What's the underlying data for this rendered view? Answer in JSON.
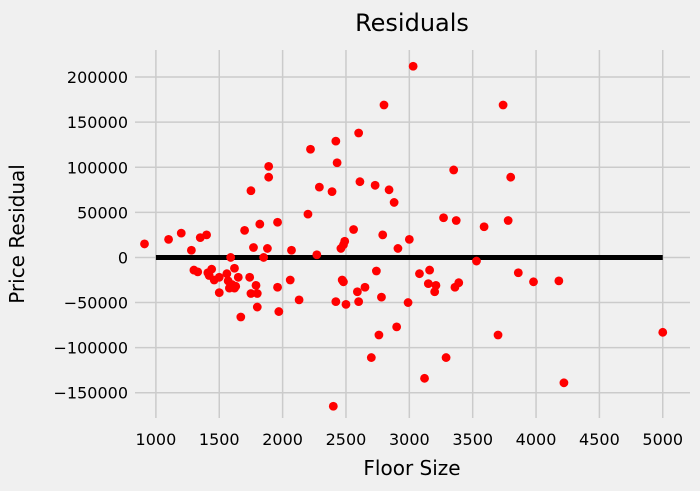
{
  "chart_data": {
    "type": "scatter",
    "title": "Residuals",
    "xlabel": "Floor Size",
    "ylabel": "Price Residual",
    "xlim": [
      835,
      5215
    ],
    "ylim": [
      -178000,
      230000
    ],
    "xticks": [
      1000,
      1500,
      2000,
      2500,
      3000,
      3500,
      4000,
      4500,
      5000
    ],
    "yticks": [
      -150000,
      -100000,
      -50000,
      0,
      50000,
      100000,
      150000,
      200000
    ],
    "xtick_labels": [
      "1000",
      "1500",
      "2000",
      "2500",
      "3000",
      "3500",
      "4000",
      "4500",
      "5000"
    ],
    "ytick_labels": [
      "−150000",
      "−100000",
      "−50000",
      "0",
      "50000",
      "100000",
      "150000",
      "200000"
    ],
    "grid": true,
    "marker_color": "#ff0000",
    "baseline": {
      "y": 0,
      "x": [
        1000,
        5000
      ],
      "color": "#000000"
    },
    "series": [
      {
        "points": [
          {
            "x": 910,
            "y": 15000
          },
          {
            "x": 1100,
            "y": 20000
          },
          {
            "x": 1200,
            "y": 27000
          },
          {
            "x": 1280,
            "y": 8000
          },
          {
            "x": 1300,
            "y": -14000
          },
          {
            "x": 1330,
            "y": -16000
          },
          {
            "x": 1350,
            "y": 22000
          },
          {
            "x": 1400,
            "y": 25000
          },
          {
            "x": 1410,
            "y": -17000
          },
          {
            "x": 1420,
            "y": -20000
          },
          {
            "x": 1440,
            "y": -13000
          },
          {
            "x": 1460,
            "y": -25000
          },
          {
            "x": 1500,
            "y": -22000
          },
          {
            "x": 1500,
            "y": -39000
          },
          {
            "x": 1560,
            "y": -18000
          },
          {
            "x": 1570,
            "y": -26000
          },
          {
            "x": 1580,
            "y": -34000
          },
          {
            "x": 1590,
            "y": 0
          },
          {
            "x": 1600,
            "y": -30000
          },
          {
            "x": 1620,
            "y": -34000
          },
          {
            "x": 1620,
            "y": -12000
          },
          {
            "x": 1630,
            "y": -32000
          },
          {
            "x": 1650,
            "y": -22000
          },
          {
            "x": 1670,
            "y": -66000
          },
          {
            "x": 1700,
            "y": 30000
          },
          {
            "x": 1740,
            "y": -22000
          },
          {
            "x": 1750,
            "y": 74000
          },
          {
            "x": 1750,
            "y": -40000
          },
          {
            "x": 1770,
            "y": 11000
          },
          {
            "x": 1790,
            "y": -31000
          },
          {
            "x": 1800,
            "y": -55000
          },
          {
            "x": 1800,
            "y": -40000
          },
          {
            "x": 1820,
            "y": 37000
          },
          {
            "x": 1850,
            "y": 0
          },
          {
            "x": 1880,
            "y": 10000
          },
          {
            "x": 1890,
            "y": 89000
          },
          {
            "x": 1890,
            "y": 101000
          },
          {
            "x": 1960,
            "y": -33000
          },
          {
            "x": 1960,
            "y": 39000
          },
          {
            "x": 1970,
            "y": -60000
          },
          {
            "x": 2060,
            "y": -25000
          },
          {
            "x": 2070,
            "y": 8000
          },
          {
            "x": 2130,
            "y": -47000
          },
          {
            "x": 2200,
            "y": 48000
          },
          {
            "x": 2220,
            "y": 120000
          },
          {
            "x": 2270,
            "y": 3000
          },
          {
            "x": 2290,
            "y": 78000
          },
          {
            "x": 2390,
            "y": 73000
          },
          {
            "x": 2400,
            "y": -165000
          },
          {
            "x": 2420,
            "y": -49000
          },
          {
            "x": 2420,
            "y": 129000
          },
          {
            "x": 2430,
            "y": 105000
          },
          {
            "x": 2460,
            "y": 10000
          },
          {
            "x": 2470,
            "y": -25000
          },
          {
            "x": 2480,
            "y": -27000
          },
          {
            "x": 2480,
            "y": 14000
          },
          {
            "x": 2490,
            "y": 18000
          },
          {
            "x": 2500,
            "y": -52000
          },
          {
            "x": 2560,
            "y": 31000
          },
          {
            "x": 2590,
            "y": -38000
          },
          {
            "x": 2600,
            "y": 138000
          },
          {
            "x": 2600,
            "y": -49000
          },
          {
            "x": 2610,
            "y": 84000
          },
          {
            "x": 2650,
            "y": -33000
          },
          {
            "x": 2700,
            "y": -111000
          },
          {
            "x": 2730,
            "y": 80000
          },
          {
            "x": 2740,
            "y": -15000
          },
          {
            "x": 2760,
            "y": -86000
          },
          {
            "x": 2780,
            "y": -44000
          },
          {
            "x": 2790,
            "y": 25000
          },
          {
            "x": 2800,
            "y": 169000
          },
          {
            "x": 2840,
            "y": 75000
          },
          {
            "x": 2880,
            "y": 61000
          },
          {
            "x": 2900,
            "y": -77000
          },
          {
            "x": 2910,
            "y": 10000
          },
          {
            "x": 2990,
            "y": -50000
          },
          {
            "x": 3000,
            "y": 20000
          },
          {
            "x": 3030,
            "y": 212000
          },
          {
            "x": 3080,
            "y": -18000
          },
          {
            "x": 3120,
            "y": -134000
          },
          {
            "x": 3150,
            "y": -29000
          },
          {
            "x": 3160,
            "y": -14000
          },
          {
            "x": 3200,
            "y": -38000
          },
          {
            "x": 3210,
            "y": -31000
          },
          {
            "x": 3270,
            "y": 44000
          },
          {
            "x": 3290,
            "y": -111000
          },
          {
            "x": 3350,
            "y": 97000
          },
          {
            "x": 3360,
            "y": -33000
          },
          {
            "x": 3370,
            "y": 41000
          },
          {
            "x": 3390,
            "y": -28000
          },
          {
            "x": 3530,
            "y": -4000
          },
          {
            "x": 3590,
            "y": 34000
          },
          {
            "x": 3700,
            "y": -86000
          },
          {
            "x": 3740,
            "y": 169000
          },
          {
            "x": 3780,
            "y": 41000
          },
          {
            "x": 3800,
            "y": 89000
          },
          {
            "x": 3860,
            "y": -17000
          },
          {
            "x": 3980,
            "y": -27000
          },
          {
            "x": 4180,
            "y": -26000
          },
          {
            "x": 4220,
            "y": -139000
          },
          {
            "x": 5000,
            "y": -83000
          }
        ]
      }
    ]
  }
}
